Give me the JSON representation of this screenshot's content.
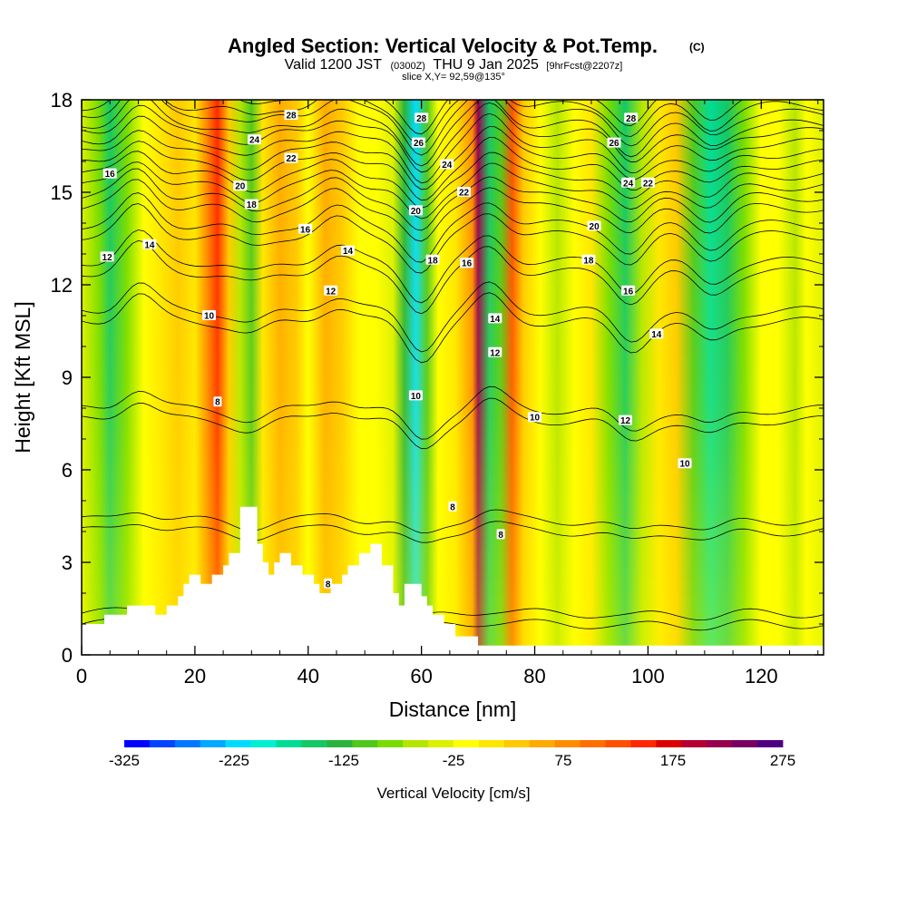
{
  "chart_data": {
    "type": "heatmap",
    "title": "Angled Section: Vertical Velocity & Pot.Temp.",
    "title_unit": "(C)",
    "subtitle_parts": {
      "valid": "Valid 1200 JST",
      "utc": "(0300Z)",
      "date": "THU 9 Jan 2025",
      "forecast": "[9hrFcst@2207z]"
    },
    "slice_label": "slice X,Y= 92,59@135°",
    "xlabel": "Distance [nm]",
    "ylabel": "Height [Kft MSL]",
    "xlim": [
      0,
      131
    ],
    "ylim": [
      0,
      18
    ],
    "x_ticks": [
      0,
      20,
      40,
      60,
      80,
      100,
      120
    ],
    "y_ticks": [
      0,
      3,
      6,
      9,
      12,
      15,
      18
    ],
    "x_tick_labels": [
      "0",
      "20",
      "40",
      "60",
      "80",
      "100",
      "120"
    ],
    "y_tick_labels": [
      "0",
      "3",
      "6",
      "9",
      "12",
      "15",
      "18"
    ],
    "colorbar": {
      "title": "Vertical Velocity [cm/s]",
      "min": -325,
      "max": 275,
      "step": 25,
      "tick_values": [
        -325,
        -225,
        -125,
        -25,
        75,
        175,
        275
      ],
      "tick_labels": [
        "-325",
        "-225",
        "-125",
        "-25",
        "75",
        "175",
        "275"
      ],
      "colors": [
        "#0000ff",
        "#0044ff",
        "#0077ff",
        "#00aaff",
        "#00dcff",
        "#00f0d2",
        "#00dc96",
        "#14c864",
        "#28b43c",
        "#50c81e",
        "#78dc00",
        "#b4e600",
        "#dcf000",
        "#ffff00",
        "#ffe600",
        "#ffc800",
        "#ffaa00",
        "#ff8c00",
        "#ff6e00",
        "#ff5000",
        "#ff2800",
        "#dc0000",
        "#b40032",
        "#960050",
        "#780064",
        "#500082"
      ]
    },
    "vertical_velocity_columns": [
      {
        "x": 0,
        "w": -20
      },
      {
        "x": 3,
        "w": -55
      },
      {
        "x": 5,
        "w": -140
      },
      {
        "x": 8,
        "w": -60
      },
      {
        "x": 11,
        "w": 10
      },
      {
        "x": 14,
        "w": 35
      },
      {
        "x": 17,
        "w": 55
      },
      {
        "x": 20,
        "w": 40
      },
      {
        "x": 22,
        "w": 120
      },
      {
        "x": 24,
        "w": 185
      },
      {
        "x": 26,
        "w": 60
      },
      {
        "x": 28,
        "w": -40
      },
      {
        "x": 30,
        "w": -100
      },
      {
        "x": 32,
        "w": 30
      },
      {
        "x": 35,
        "w": 95
      },
      {
        "x": 38,
        "w": 70
      },
      {
        "x": 40,
        "w": 15
      },
      {
        "x": 43,
        "w": 85
      },
      {
        "x": 46,
        "w": 60
      },
      {
        "x": 49,
        "w": 10
      },
      {
        "x": 52,
        "w": 20
      },
      {
        "x": 55,
        "w": -20
      },
      {
        "x": 57,
        "w": -110
      },
      {
        "x": 59,
        "w": -205
      },
      {
        "x": 61,
        "w": -90
      },
      {
        "x": 63,
        "w": 20
      },
      {
        "x": 66,
        "w": 35
      },
      {
        "x": 69,
        "w": 120
      },
      {
        "x": 70,
        "w": 250
      },
      {
        "x": 72,
        "w": -150
      },
      {
        "x": 74,
        "w": -80
      },
      {
        "x": 76,
        "w": 160
      },
      {
        "x": 78,
        "w": 70
      },
      {
        "x": 81,
        "w": 10
      },
      {
        "x": 84,
        "w": -50
      },
      {
        "x": 87,
        "w": 5
      },
      {
        "x": 90,
        "w": 25
      },
      {
        "x": 93,
        "w": -60
      },
      {
        "x": 96,
        "w": -150
      },
      {
        "x": 99,
        "w": -50
      },
      {
        "x": 102,
        "w": 40
      },
      {
        "x": 105,
        "w": 60
      },
      {
        "x": 108,
        "w": -90
      },
      {
        "x": 111,
        "w": -175
      },
      {
        "x": 114,
        "w": -140
      },
      {
        "x": 117,
        "w": -60
      },
      {
        "x": 120,
        "w": 20
      },
      {
        "x": 123,
        "w": 10
      },
      {
        "x": 126,
        "w": -30
      },
      {
        "x": 128,
        "w": 10
      },
      {
        "x": 131,
        "w": -10
      }
    ],
    "terrain": [
      [
        0,
        1.0
      ],
      [
        4,
        1.0
      ],
      [
        4,
        1.3
      ],
      [
        8,
        1.3
      ],
      [
        8,
        1.6
      ],
      [
        13,
        1.6
      ],
      [
        13,
        1.3
      ],
      [
        15,
        1.3
      ],
      [
        15,
        1.6
      ],
      [
        17,
        1.6
      ],
      [
        17,
        1.9
      ],
      [
        18,
        1.9
      ],
      [
        18,
        2.3
      ],
      [
        19,
        2.3
      ],
      [
        19,
        2.6
      ],
      [
        21,
        2.6
      ],
      [
        21,
        2.3
      ],
      [
        23,
        2.3
      ],
      [
        23,
        2.6
      ],
      [
        25,
        2.6
      ],
      [
        25,
        2.9
      ],
      [
        26,
        2.9
      ],
      [
        26,
        3.3
      ],
      [
        28,
        3.3
      ],
      [
        28,
        4.8
      ],
      [
        31,
        4.8
      ],
      [
        31,
        3.6
      ],
      [
        32,
        3.6
      ],
      [
        32,
        3.0
      ],
      [
        33,
        3.0
      ],
      [
        33,
        2.6
      ],
      [
        34,
        2.6
      ],
      [
        34,
        3.0
      ],
      [
        35,
        3.0
      ],
      [
        35,
        3.3
      ],
      [
        37,
        3.3
      ],
      [
        37,
        2.9
      ],
      [
        39,
        2.9
      ],
      [
        39,
        2.6
      ],
      [
        41,
        2.6
      ],
      [
        41,
        2.3
      ],
      [
        42,
        2.3
      ],
      [
        42,
        2.0
      ],
      [
        44,
        2.0
      ],
      [
        44,
        2.3
      ],
      [
        46,
        2.3
      ],
      [
        46,
        2.6
      ],
      [
        47,
        2.6
      ],
      [
        47,
        2.9
      ],
      [
        49,
        2.9
      ],
      [
        49,
        3.3
      ],
      [
        51,
        3.3
      ],
      [
        51,
        3.6
      ],
      [
        53,
        3.6
      ],
      [
        53,
        2.9
      ],
      [
        55,
        2.9
      ],
      [
        55,
        2.0
      ],
      [
        56,
        2.0
      ],
      [
        56,
        1.6
      ],
      [
        57,
        1.6
      ],
      [
        57,
        2.3
      ],
      [
        60,
        2.3
      ],
      [
        60,
        1.9
      ],
      [
        61,
        1.9
      ],
      [
        61,
        1.6
      ],
      [
        62,
        1.6
      ],
      [
        62,
        1.3
      ],
      [
        64,
        1.3
      ],
      [
        64,
        1.0
      ],
      [
        66,
        1.0
      ],
      [
        66,
        0.6
      ],
      [
        70,
        0.6
      ],
      [
        70,
        0.3
      ],
      [
        131,
        0.3
      ]
    ],
    "theta_contours": [
      {
        "value": "6",
        "base": 1.0
      },
      {
        "value": "8",
        "base": 4.0
      },
      {
        "value": "10",
        "base": 7.6
      },
      {
        "value": "12",
        "base": 10.8
      },
      {
        "value": "14",
        "base": 12.4
      },
      {
        "value": "16",
        "base": 13.6
      },
      {
        "value": "18",
        "base": 14.5
      },
      {
        "value": "20",
        "base": 15.2
      },
      {
        "value": "22",
        "base": 15.9
      },
      {
        "value": "24",
        "base": 16.6
      },
      {
        "value": "26",
        "base": 17.2
      },
      {
        "value": "28",
        "base": 17.8
      }
    ],
    "contour_labels": [
      {
        "text": "16",
        "x": 5,
        "y": 15.6
      },
      {
        "text": "12",
        "x": 4.5,
        "y": 12.9
      },
      {
        "text": "14",
        "x": 12,
        "y": 13.3
      },
      {
        "text": "10",
        "x": 22.5,
        "y": 11.0
      },
      {
        "text": "8",
        "x": 24,
        "y": 8.2
      },
      {
        "text": "28",
        "x": 37,
        "y": 17.5
      },
      {
        "text": "24",
        "x": 30.5,
        "y": 16.7
      },
      {
        "text": "22",
        "x": 37,
        "y": 16.1
      },
      {
        "text": "20",
        "x": 28,
        "y": 15.2
      },
      {
        "text": "18",
        "x": 30,
        "y": 14.6
      },
      {
        "text": "16",
        "x": 39.5,
        "y": 13.8
      },
      {
        "text": "14",
        "x": 47,
        "y": 13.1
      },
      {
        "text": "12",
        "x": 44,
        "y": 11.8
      },
      {
        "text": "8",
        "x": 43.5,
        "y": 2.3
      },
      {
        "text": "28",
        "x": 60,
        "y": 17.4
      },
      {
        "text": "26",
        "x": 59.5,
        "y": 16.6
      },
      {
        "text": "24",
        "x": 64.5,
        "y": 15.9
      },
      {
        "text": "22",
        "x": 67.5,
        "y": 15.0
      },
      {
        "text": "20",
        "x": 59,
        "y": 14.4
      },
      {
        "text": "18",
        "x": 62,
        "y": 12.8
      },
      {
        "text": "16",
        "x": 68,
        "y": 12.7
      },
      {
        "text": "14",
        "x": 73,
        "y": 10.9
      },
      {
        "text": "12",
        "x": 73,
        "y": 9.8
      },
      {
        "text": "10",
        "x": 59,
        "y": 8.4
      },
      {
        "text": "8",
        "x": 65.5,
        "y": 4.8
      },
      {
        "text": "8",
        "x": 74,
        "y": 3.9
      },
      {
        "text": "10",
        "x": 80,
        "y": 7.7
      },
      {
        "text": "28",
        "x": 97,
        "y": 17.4
      },
      {
        "text": "26",
        "x": 94,
        "y": 16.6
      },
      {
        "text": "24",
        "x": 96.5,
        "y": 15.3
      },
      {
        "text": "22",
        "x": 100,
        "y": 15.3
      },
      {
        "text": "20",
        "x": 90.5,
        "y": 13.9
      },
      {
        "text": "18",
        "x": 89.5,
        "y": 12.8
      },
      {
        "text": "16",
        "x": 96.5,
        "y": 11.8
      },
      {
        "text": "14",
        "x": 101.5,
        "y": 10.4
      },
      {
        "text": "12",
        "x": 96,
        "y": 7.6
      },
      {
        "text": "10",
        "x": 106.5,
        "y": 6.2
      }
    ]
  }
}
